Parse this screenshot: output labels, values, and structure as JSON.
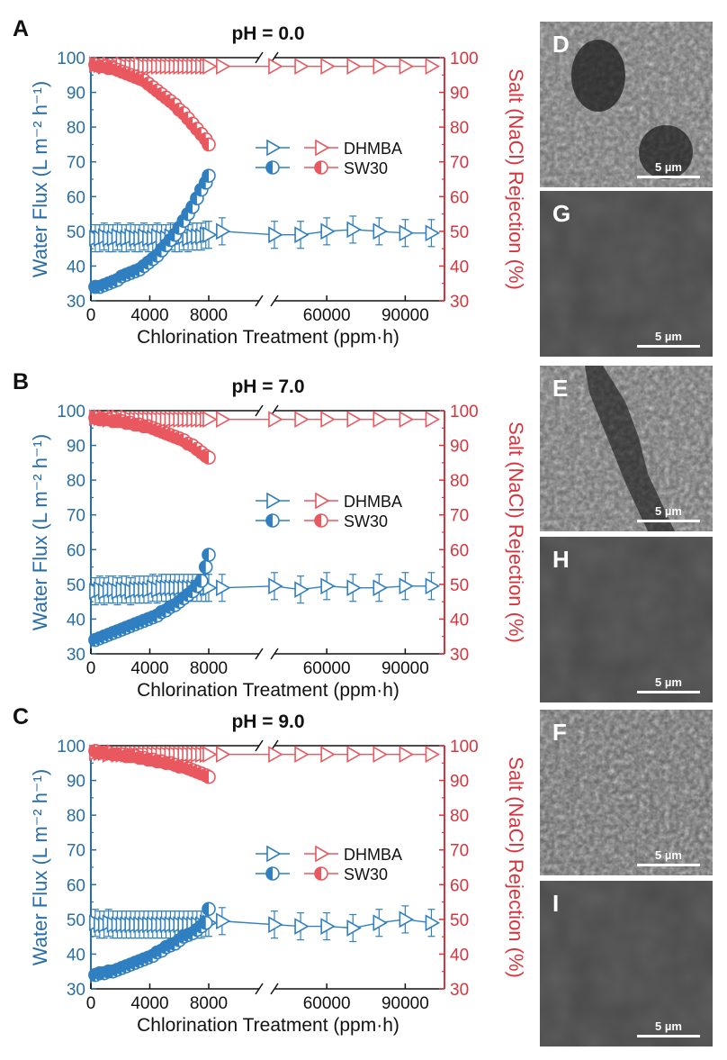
{
  "chart_data": [
    {
      "panel": "A",
      "type": "scatter",
      "title": "pH = 0.0",
      "xlabel": "Chlorination Treatment (ppm·h)",
      "ylabel_left": "Water Flux (L m⁻² h⁻¹)",
      "ylabel_right": "Salt (NaCl) Rejection (%)",
      "xticks": [
        "0",
        "4000",
        "8000",
        "60000",
        "90000"
      ],
      "ylim": [
        30,
        100
      ],
      "legend": [
        "DHMBA",
        "SW30"
      ],
      "legend_position": "center-right",
      "series": [
        {
          "name": "DHMBA",
          "axis": "left",
          "x": [
            300,
            600,
            900,
            1200,
            1500,
            1800,
            2100,
            2400,
            2700,
            3000,
            3300,
            3600,
            3900,
            4200,
            4500,
            4800,
            5100,
            5400,
            5700,
            6000,
            6300,
            6600,
            6900,
            7200,
            7500,
            7800,
            8000,
            20000,
            40000,
            50000,
            60000,
            70000,
            80000,
            90000,
            100000
          ],
          "y": [
            48,
            48,
            48.5,
            48,
            48,
            48.5,
            48,
            48,
            48.5,
            48,
            48,
            48.5,
            48,
            48,
            48.5,
            48,
            48,
            48.5,
            48,
            48,
            48.5,
            48,
            48.5,
            48.5,
            48.5,
            49,
            49,
            50,
            49,
            49,
            50,
            50.5,
            50,
            49.5,
            49.5
          ]
        },
        {
          "name": "DHMBA",
          "axis": "right",
          "x": [
            300,
            600,
            900,
            1200,
            1500,
            1800,
            2100,
            2400,
            2700,
            3000,
            3300,
            3600,
            3900,
            4200,
            4500,
            4800,
            5100,
            5400,
            5700,
            6000,
            6300,
            6600,
            6900,
            7200,
            7500,
            7800,
            8000,
            20000,
            40000,
            50000,
            60000,
            70000,
            80000,
            90000,
            100000
          ],
          "y": [
            98,
            98,
            97.5,
            98,
            97.5,
            97.5,
            98,
            97.5,
            97.5,
            97.5,
            98,
            97.5,
            97.5,
            97.5,
            97.5,
            97.5,
            97.5,
            97.5,
            97.5,
            97.5,
            97.5,
            97.5,
            97.5,
            97.5,
            97.5,
            97.5,
            97.5,
            97.5,
            97.5,
            97.5,
            97.5,
            97.5,
            97.5,
            97.5,
            97.5
          ]
        },
        {
          "name": "SW30",
          "axis": "left",
          "x": [
            300,
            600,
            900,
            1200,
            1500,
            1800,
            2100,
            2400,
            2700,
            3000,
            3300,
            3600,
            3900,
            4200,
            4500,
            4800,
            5100,
            5400,
            5700,
            6000,
            6300,
            6600,
            6900,
            7200,
            7500,
            7800,
            8000
          ],
          "y": [
            34,
            34,
            34.5,
            35,
            35.5,
            36,
            37,
            37.5,
            38,
            38.5,
            39,
            40,
            41,
            42,
            43,
            44.5,
            46,
            47.5,
            49,
            51,
            53,
            55,
            57,
            59.5,
            62,
            64,
            66
          ]
        },
        {
          "name": "SW30",
          "axis": "right",
          "x": [
            300,
            600,
            900,
            1200,
            1500,
            1800,
            2100,
            2400,
            2700,
            3000,
            3300,
            3600,
            3900,
            4200,
            4500,
            4800,
            5100,
            5400,
            5700,
            6000,
            6300,
            6600,
            6900,
            7200,
            7500,
            7800,
            8000
          ],
          "y": [
            98,
            97.5,
            97.5,
            97,
            97,
            96.5,
            96,
            95.5,
            95,
            94.5,
            94,
            93.5,
            92.5,
            91.5,
            90.5,
            89.5,
            88.5,
            87.5,
            86.5,
            85,
            84,
            82.5,
            81,
            79.5,
            78,
            76.5,
            75
          ]
        }
      ]
    },
    {
      "panel": "B",
      "type": "scatter",
      "title": "pH = 7.0",
      "xlabel": "Chlorination Treatment (ppm·h)",
      "ylabel_left": "Water Flux (L m⁻² h⁻¹)",
      "ylabel_right": "Salt (NaCl) Rejection (%)",
      "xticks": [
        "0",
        "4000",
        "8000",
        "60000",
        "90000"
      ],
      "ylim": [
        30,
        100
      ],
      "legend": [
        "DHMBA",
        "SW30"
      ],
      "legend_position": "center-right",
      "series": [
        {
          "name": "DHMBA",
          "axis": "left",
          "x": [
            300,
            600,
            900,
            1200,
            1500,
            1800,
            2100,
            2400,
            2700,
            3000,
            3300,
            3600,
            3900,
            4200,
            4500,
            4800,
            5100,
            5400,
            5700,
            6000,
            6300,
            6600,
            6900,
            7200,
            7500,
            7800,
            8000,
            20000,
            40000,
            50000,
            60000,
            70000,
            80000,
            90000,
            100000
          ],
          "y": [
            48,
            48.5,
            48,
            48.5,
            48.5,
            48,
            48.5,
            48.5,
            48,
            48.5,
            48.5,
            48.5,
            48.5,
            49,
            48.5,
            49,
            49,
            49,
            49,
            49,
            49,
            49,
            49,
            49,
            49,
            49,
            49,
            49,
            49.5,
            48.5,
            49.5,
            49,
            49,
            49.5,
            49.5
          ]
        },
        {
          "name": "DHMBA",
          "axis": "right",
          "x": [
            300,
            600,
            900,
            1200,
            1500,
            1800,
            2100,
            2400,
            2700,
            3000,
            3300,
            3600,
            3900,
            4200,
            4500,
            4800,
            5100,
            5400,
            5700,
            6000,
            6300,
            6600,
            6900,
            7200,
            7500,
            7800,
            8000,
            20000,
            40000,
            50000,
            60000,
            70000,
            80000,
            90000,
            100000
          ],
          "y": [
            98,
            98,
            98,
            97.5,
            98,
            98,
            97.5,
            98,
            97.5,
            97.5,
            97.5,
            97.5,
            97.5,
            97.5,
            97.5,
            97.5,
            97.5,
            97.5,
            97.5,
            97.5,
            97.5,
            97.5,
            97.5,
            97.5,
            97.5,
            97.5,
            97.5,
            97.5,
            97.5,
            97.5,
            97.5,
            97.5,
            97.5,
            97.5,
            97.5
          ]
        },
        {
          "name": "SW30",
          "axis": "left",
          "x": [
            300,
            600,
            900,
            1200,
            1500,
            1800,
            2100,
            2400,
            2700,
            3000,
            3300,
            3600,
            3900,
            4200,
            4500,
            4800,
            5100,
            5400,
            5700,
            6000,
            6300,
            6600,
            6900,
            7200,
            7500,
            7800,
            8000
          ],
          "y": [
            34,
            34.5,
            35,
            35.5,
            36,
            36.5,
            37,
            37.5,
            38,
            38.5,
            39,
            39.5,
            40,
            40.5,
            41,
            42,
            42.5,
            43.5,
            44,
            45,
            46,
            47,
            48,
            49.5,
            51,
            55,
            58.5
          ]
        },
        {
          "name": "SW30",
          "axis": "right",
          "x": [
            300,
            600,
            900,
            1200,
            1500,
            1800,
            2100,
            2400,
            2700,
            3000,
            3300,
            3600,
            3900,
            4200,
            4500,
            4800,
            5100,
            5400,
            5700,
            6000,
            6300,
            6600,
            6900,
            7200,
            7500,
            7800,
            8000
          ],
          "y": [
            98,
            97.5,
            97.5,
            97.5,
            97,
            97,
            97,
            96.5,
            96.5,
            96,
            96,
            95.5,
            95.5,
            95,
            94.5,
            94,
            93.5,
            93,
            92.5,
            92,
            91.5,
            90.5,
            90,
            89,
            88,
            87,
            86.5
          ]
        }
      ]
    },
    {
      "panel": "C",
      "type": "scatter",
      "title": "pH = 9.0",
      "xlabel": "Chlorination Treatment (ppm·h)",
      "ylabel_left": "Water Flux (L m⁻² h⁻¹)",
      "ylabel_right": "Salt (NaCl) Rejection (%)",
      "xticks": [
        "0",
        "4000",
        "8000",
        "60000",
        "90000"
      ],
      "ylim": [
        30,
        100
      ],
      "legend": [
        "DHMBA",
        "SW30"
      ],
      "legend_position": "center-right",
      "series": [
        {
          "name": "DHMBA",
          "axis": "left",
          "x": [
            300,
            600,
            900,
            1200,
            1500,
            1800,
            2100,
            2400,
            2700,
            3000,
            3300,
            3600,
            3900,
            4200,
            4500,
            4800,
            5100,
            5400,
            5700,
            6000,
            6300,
            6600,
            6900,
            7200,
            7500,
            7800,
            8000,
            20000,
            40000,
            50000,
            60000,
            70000,
            80000,
            90000,
            100000
          ],
          "y": [
            49,
            48.5,
            48.5,
            49,
            48.5,
            48.5,
            48.5,
            48.5,
            48.5,
            48.5,
            48.5,
            48.5,
            48.5,
            48.5,
            48.5,
            48.5,
            48.5,
            48.5,
            48.5,
            48.5,
            48.5,
            48.5,
            48.5,
            48.5,
            48.5,
            49,
            49,
            49.5,
            48.5,
            48,
            48,
            47.5,
            49,
            50,
            49
          ]
        },
        {
          "name": "DHMBA",
          "axis": "right",
          "x": [
            300,
            600,
            900,
            1200,
            1500,
            1800,
            2100,
            2400,
            2700,
            3000,
            3300,
            3600,
            3900,
            4200,
            4500,
            4800,
            5100,
            5400,
            5700,
            6000,
            6300,
            6600,
            6900,
            7200,
            7500,
            7800,
            8000,
            20000,
            40000,
            50000,
            60000,
            70000,
            80000,
            90000,
            100000
          ],
          "y": [
            98,
            98,
            98,
            97.5,
            98,
            97.5,
            97.5,
            97.5,
            97.5,
            97.5,
            97.5,
            97.5,
            97.5,
            97.5,
            97.5,
            97.5,
            97.5,
            97.5,
            97.5,
            97.5,
            97.5,
            97.5,
            97.5,
            97.5,
            97.5,
            97.5,
            97.5,
            97.5,
            97.5,
            97.5,
            97.5,
            97.5,
            97.5,
            97.5,
            97.5
          ]
        },
        {
          "name": "SW30",
          "axis": "left",
          "x": [
            300,
            600,
            900,
            1200,
            1500,
            1800,
            2100,
            2400,
            2700,
            3000,
            3300,
            3600,
            3900,
            4200,
            4500,
            4800,
            5100,
            5400,
            5700,
            6000,
            6300,
            6600,
            6900,
            7200,
            7500,
            7800,
            8000
          ],
          "y": [
            34,
            34.5,
            34.5,
            35,
            35,
            35.5,
            36,
            36.5,
            37,
            37.5,
            38,
            38.5,
            39,
            39.5,
            40.5,
            41,
            42,
            42.5,
            43,
            44,
            45,
            45.5,
            46,
            47,
            48,
            49,
            53
          ]
        },
        {
          "name": "SW30",
          "axis": "right",
          "x": [
            300,
            600,
            900,
            1200,
            1500,
            1800,
            2100,
            2400,
            2700,
            3000,
            3300,
            3600,
            3900,
            4200,
            4500,
            4800,
            5100,
            5400,
            5700,
            6000,
            6300,
            6600,
            6900,
            7200,
            7500,
            7800,
            8000
          ],
          "y": [
            98.5,
            98,
            98,
            98,
            97.5,
            97.5,
            97.5,
            97,
            97,
            97,
            96.5,
            96.5,
            96,
            96,
            95.5,
            95.5,
            95,
            95,
            94.5,
            94,
            94,
            93.5,
            93,
            92.5,
            92,
            91.5,
            91
          ]
        }
      ]
    }
  ],
  "colors": {
    "blue": "#2f7fc1",
    "red": "#e8585e",
    "axis_text": "#2a6ea6",
    "axis_text_red": "#d8343c"
  },
  "images": [
    {
      "label": "D",
      "scale": "5 µm",
      "texture": "rough-pitted"
    },
    {
      "label": "G",
      "scale": "5 µm",
      "texture": "smooth"
    },
    {
      "label": "E",
      "scale": "5 µm",
      "texture": "rough-creased"
    },
    {
      "label": "H",
      "scale": "5 µm",
      "texture": "smooth"
    },
    {
      "label": "F",
      "scale": "5 µm",
      "texture": "rough-ridged"
    },
    {
      "label": "I",
      "scale": "5 µm",
      "texture": "smooth"
    }
  ]
}
